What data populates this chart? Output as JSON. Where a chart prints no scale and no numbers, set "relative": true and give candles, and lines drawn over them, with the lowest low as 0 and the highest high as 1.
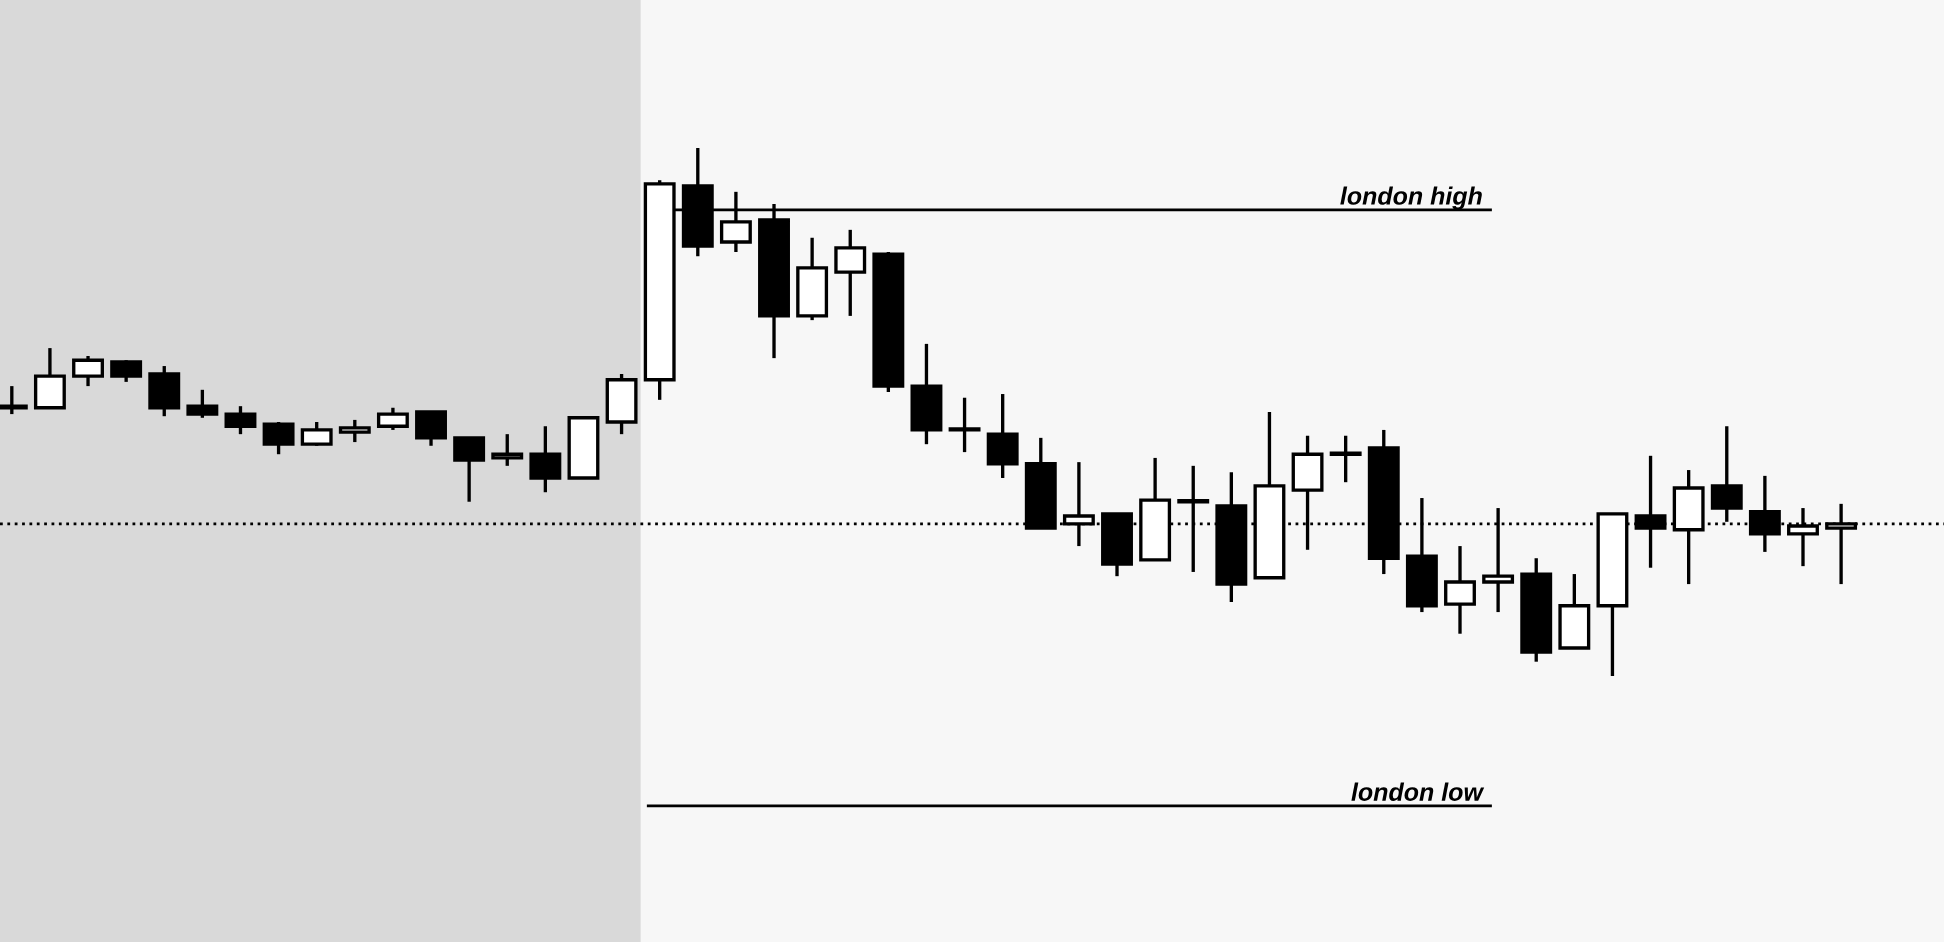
{
  "chart_data": {
    "type": "candlestick",
    "relative": true,
    "categories": [
      null,
      null,
      null,
      null,
      null,
      null,
      null,
      null,
      null,
      null,
      null,
      null,
      null,
      null,
      null,
      null,
      null,
      null,
      null,
      null,
      null,
      null,
      null,
      null,
      null,
      null,
      null,
      null,
      null,
      null,
      null,
      null,
      null,
      null,
      null,
      null,
      null,
      null,
      null,
      null,
      null,
      null,
      null,
      null,
      null,
      null,
      null,
      null,
      null
    ],
    "ohlc": [
      [
        0.511,
        0.549,
        0.496,
        0.508
      ],
      [
        0.508,
        0.621,
        0.508,
        0.568
      ],
      [
        0.568,
        0.606,
        0.549,
        0.598
      ],
      [
        0.595,
        0.598,
        0.557,
        0.568
      ],
      [
        0.572,
        0.587,
        0.492,
        0.508
      ],
      [
        0.511,
        0.542,
        0.489,
        0.496
      ],
      [
        0.496,
        0.511,
        0.458,
        0.473
      ],
      [
        0.477,
        0.481,
        0.42,
        0.439
      ],
      [
        0.439,
        0.481,
        0.436,
        0.466
      ],
      [
        0.462,
        0.485,
        0.443,
        0.47
      ],
      [
        0.473,
        0.508,
        0.466,
        0.496
      ],
      [
        0.5,
        0.5,
        0.436,
        0.451
      ],
      [
        0.451,
        0.451,
        0.33,
        0.409
      ],
      [
        0.413,
        0.458,
        0.398,
        0.42
      ],
      [
        0.42,
        0.473,
        0.348,
        0.375
      ],
      [
        0.375,
        0.489,
        0.375,
        0.489
      ],
      [
        0.481,
        0.572,
        0.458,
        0.561
      ],
      [
        0.561,
        0.939,
        0.523,
        0.932
      ],
      [
        0.928,
        1.0,
        0.795,
        0.814
      ],
      [
        0.822,
        0.917,
        0.803,
        0.86
      ],
      [
        0.864,
        0.894,
        0.602,
        0.682
      ],
      [
        0.682,
        0.83,
        0.674,
        0.773
      ],
      [
        0.765,
        0.845,
        0.682,
        0.811
      ],
      [
        0.799,
        0.803,
        0.538,
        0.549
      ],
      [
        0.549,
        0.629,
        0.439,
        0.466
      ],
      [
        0.466,
        0.527,
        0.424,
        0.466
      ],
      [
        0.458,
        0.534,
        0.375,
        0.402
      ],
      [
        0.402,
        0.451,
        0.28,
        0.28
      ],
      [
        0.288,
        0.405,
        0.246,
        0.303
      ],
      [
        0.307,
        0.307,
        0.189,
        0.212
      ],
      [
        0.22,
        0.413,
        0.22,
        0.333
      ],
      [
        0.33,
        0.398,
        0.197,
        0.33
      ],
      [
        0.322,
        0.386,
        0.14,
        0.174
      ],
      [
        0.186,
        0.5,
        0.186,
        0.36
      ],
      [
        0.352,
        0.455,
        0.239,
        0.42
      ],
      [
        0.42,
        0.455,
        0.367,
        0.42
      ],
      [
        0.432,
        0.466,
        0.193,
        0.223
      ],
      [
        0.227,
        0.337,
        0.121,
        0.133
      ],
      [
        0.136,
        0.246,
        0.08,
        0.178
      ],
      [
        0.178,
        0.318,
        0.121,
        0.189
      ],
      [
        0.193,
        0.223,
        0.027,
        0.045
      ],
      [
        0.053,
        0.193,
        0.053,
        0.133
      ],
      [
        0.133,
        0.307,
        0.0,
        0.307
      ],
      [
        0.303,
        0.417,
        0.205,
        0.28
      ],
      [
        0.277,
        0.39,
        0.174,
        0.356
      ],
      [
        0.36,
        0.473,
        0.292,
        0.318
      ],
      [
        0.311,
        0.379,
        0.235,
        0.269
      ],
      [
        0.269,
        0.318,
        0.208,
        0.284
      ],
      [
        0.28,
        0.326,
        0.174,
        0.288
      ]
    ],
    "ref_lines": [
      {
        "axis": "y",
        "value": 0.883,
        "label": "london high",
        "color": "#000000",
        "line_style": "solid"
      },
      {
        "axis": "y",
        "value": -0.246,
        "label": "london low",
        "color": "#000000",
        "line_style": "solid"
      },
      {
        "axis": "y",
        "value": 0.288,
        "color": "#000000",
        "line_style": "dotted"
      }
    ]
  }
}
